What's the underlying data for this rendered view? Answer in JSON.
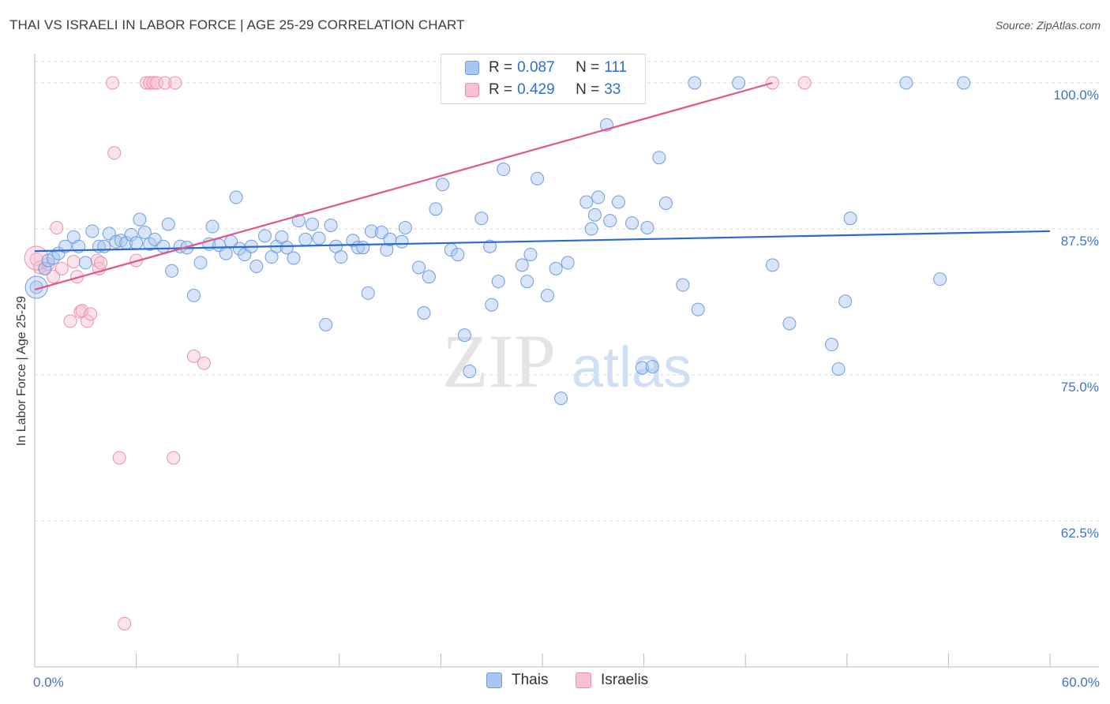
{
  "title": "THAI VS ISRAELI IN LABOR FORCE | AGE 25-29 CORRELATION CHART",
  "source": "Source: ZipAtlas.com",
  "watermark": {
    "zip": "ZIP",
    "atlas": "atlas"
  },
  "legend": [
    {
      "r_label": "R = ",
      "r_value": "0.087",
      "n_label": "N = ",
      "n_value": "111",
      "color": "#8fb4ec"
    },
    {
      "r_label": "R = ",
      "r_value": "0.429",
      "n_label": "N = ",
      "n_value": "33",
      "color": "#f2a9c2"
    }
  ],
  "bottom_legend": [
    {
      "label": "Thais",
      "color": "#8fb4ec"
    },
    {
      "label": "Israelis",
      "color": "#f2a9c2"
    }
  ],
  "colors": {
    "thai_fill": "#a9c6f2",
    "thai_stroke": "#6f9de0",
    "thai_line": "#2a6bd2",
    "isr_fill": "#f7c0d3",
    "isr_stroke": "#ec8fb0",
    "isr_line": "#e0558a",
    "axis_label": "#3f74c9",
    "grid": "#d7d7d7"
  },
  "chart_data": {
    "type": "scatter",
    "title": "THAI VS ISRAELI IN LABOR FORCE | AGE 25-29 CORRELATION CHART",
    "xlabel": "",
    "ylabel": "In Labor Force | Age 25-29",
    "xlim": [
      0,
      60
    ],
    "ylim": [
      50,
      102.5
    ],
    "x_ticks": [
      0,
      6,
      12,
      18,
      24,
      30,
      36,
      42,
      48,
      54,
      60
    ],
    "x_tick_labels": [
      {
        "value": 0,
        "label": "0.0%"
      },
      {
        "value": 60,
        "label": "60.0%"
      }
    ],
    "y_ticks": [
      {
        "value": 62.5,
        "label": "62.5%"
      },
      {
        "value": 75.0,
        "label": "75.0%"
      },
      {
        "value": 87.5,
        "label": "87.5%"
      },
      {
        "value": 100.0,
        "label": "100.0%"
      }
    ],
    "series": [
      {
        "name": "Thais",
        "r": 0.087,
        "n": 111,
        "trend": {
          "x": [
            0,
            60
          ],
          "y": [
            85.6,
            87.3
          ]
        },
        "points": [
          [
            0.1,
            82.5
          ],
          [
            0.6,
            84.1
          ],
          [
            0.8,
            84.8
          ],
          [
            1.1,
            85.0
          ],
          [
            1.4,
            85.4
          ],
          [
            1.8,
            86.0
          ],
          [
            2.3,
            86.8
          ],
          [
            2.6,
            86.0
          ],
          [
            3.0,
            84.6
          ],
          [
            3.4,
            87.3
          ],
          [
            3.8,
            86.0
          ],
          [
            4.1,
            86.0
          ],
          [
            4.4,
            87.1
          ],
          [
            4.8,
            86.4
          ],
          [
            5.1,
            86.5
          ],
          [
            5.4,
            86.3
          ],
          [
            5.7,
            87.0
          ],
          [
            6.0,
            86.3
          ],
          [
            6.2,
            88.3
          ],
          [
            6.5,
            87.2
          ],
          [
            6.8,
            86.2
          ],
          [
            7.1,
            86.6
          ],
          [
            7.6,
            86.0
          ],
          [
            7.9,
            87.9
          ],
          [
            8.1,
            83.9
          ],
          [
            8.6,
            86.0
          ],
          [
            9.0,
            85.9
          ],
          [
            9.4,
            81.8
          ],
          [
            9.8,
            84.6
          ],
          [
            10.3,
            86.2
          ],
          [
            10.5,
            87.7
          ],
          [
            10.9,
            86.1
          ],
          [
            11.3,
            85.4
          ],
          [
            11.6,
            86.4
          ],
          [
            11.9,
            90.2
          ],
          [
            12.1,
            85.8
          ],
          [
            12.4,
            85.3
          ],
          [
            12.8,
            86.0
          ],
          [
            13.1,
            84.3
          ],
          [
            13.6,
            86.9
          ],
          [
            14.0,
            85.1
          ],
          [
            14.3,
            86.0
          ],
          [
            14.6,
            86.8
          ],
          [
            14.9,
            85.9
          ],
          [
            15.3,
            85.0
          ],
          [
            15.6,
            88.2
          ],
          [
            16.0,
            86.6
          ],
          [
            16.4,
            87.9
          ],
          [
            16.8,
            86.7
          ],
          [
            17.2,
            79.3
          ],
          [
            17.5,
            87.8
          ],
          [
            17.8,
            86.0
          ],
          [
            18.1,
            85.1
          ],
          [
            18.8,
            86.5
          ],
          [
            19.1,
            85.9
          ],
          [
            19.4,
            85.9
          ],
          [
            19.7,
            82.0
          ],
          [
            19.9,
            87.3
          ],
          [
            20.5,
            87.2
          ],
          [
            20.8,
            85.7
          ],
          [
            21.0,
            86.6
          ],
          [
            21.7,
            86.4
          ],
          [
            21.9,
            87.6
          ],
          [
            22.7,
            84.2
          ],
          [
            23.0,
            80.3
          ],
          [
            23.3,
            83.4
          ],
          [
            23.7,
            89.2
          ],
          [
            24.1,
            91.3
          ],
          [
            24.6,
            85.7
          ],
          [
            25.0,
            85.3
          ],
          [
            25.4,
            78.4
          ],
          [
            25.7,
            75.3
          ],
          [
            26.4,
            88.4
          ],
          [
            26.9,
            86.0
          ],
          [
            27.0,
            81.0
          ],
          [
            27.4,
            83.0
          ],
          [
            27.7,
            92.6
          ],
          [
            28.8,
            84.4
          ],
          [
            29.1,
            83.0
          ],
          [
            29.3,
            85.3
          ],
          [
            29.7,
            91.8
          ],
          [
            30.3,
            81.8
          ],
          [
            30.8,
            84.1
          ],
          [
            31.1,
            73.0
          ],
          [
            31.5,
            84.6
          ],
          [
            32.6,
            89.8
          ],
          [
            32.9,
            87.5
          ],
          [
            33.1,
            88.7
          ],
          [
            33.3,
            90.2
          ],
          [
            33.8,
            96.4
          ],
          [
            34.0,
            88.2
          ],
          [
            34.5,
            89.8
          ],
          [
            35.3,
            88.0
          ],
          [
            36.2,
            87.6
          ],
          [
            36.9,
            93.6
          ],
          [
            35.9,
            75.6
          ],
          [
            36.5,
            75.7
          ],
          [
            37.3,
            89.7
          ],
          [
            38.3,
            82.7
          ],
          [
            39.2,
            80.6
          ],
          [
            39.0,
            100.0
          ],
          [
            41.6,
            100.0
          ],
          [
            43.6,
            84.4
          ],
          [
            44.6,
            79.4
          ],
          [
            47.1,
            77.6
          ],
          [
            47.5,
            75.5
          ],
          [
            47.9,
            81.3
          ],
          [
            48.2,
            88.4
          ],
          [
            51.5,
            100.0
          ],
          [
            53.5,
            83.2
          ],
          [
            54.9,
            100.0
          ]
        ]
      },
      {
        "name": "Israelis",
        "r": 0.429,
        "n": 33,
        "trend": {
          "x": [
            0,
            43.6
          ],
          "y": [
            82.3,
            100.0
          ]
        },
        "points": [
          [
            0.1,
            84.9
          ],
          [
            0.3,
            84.2
          ],
          [
            0.6,
            84.1
          ],
          [
            0.8,
            84.5
          ],
          [
            1.1,
            83.4
          ],
          [
            1.3,
            87.6
          ],
          [
            1.6,
            84.1
          ],
          [
            2.1,
            79.6
          ],
          [
            2.3,
            84.7
          ],
          [
            2.5,
            83.4
          ],
          [
            2.7,
            80.4
          ],
          [
            2.8,
            80.5
          ],
          [
            3.1,
            79.6
          ],
          [
            3.3,
            80.2
          ],
          [
            3.7,
            84.8
          ],
          [
            3.8,
            84.1
          ],
          [
            3.9,
            84.6
          ],
          [
            4.6,
            100.0
          ],
          [
            4.7,
            94.0
          ],
          [
            5.0,
            67.9
          ],
          [
            5.3,
            53.7
          ],
          [
            6.0,
            84.8
          ],
          [
            6.6,
            100.0
          ],
          [
            6.8,
            100.0
          ],
          [
            7.0,
            100.0
          ],
          [
            7.2,
            100.0
          ],
          [
            7.7,
            100.0
          ],
          [
            8.2,
            67.9
          ],
          [
            8.3,
            100.0
          ],
          [
            9.4,
            76.6
          ],
          [
            10.0,
            76.0
          ],
          [
            43.6,
            100.0
          ],
          [
            45.5,
            100.0
          ]
        ]
      }
    ]
  }
}
